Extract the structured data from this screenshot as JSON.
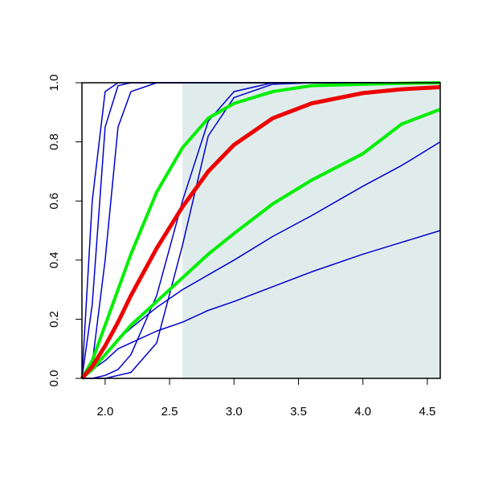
{
  "chart_data": {
    "type": "line",
    "x": [
      1.82,
      1.9,
      2.0,
      2.1,
      2.2,
      2.4,
      2.6,
      2.8,
      3.0,
      3.3,
      3.6,
      4.0,
      4.3,
      4.6
    ],
    "xlim": [
      1.82,
      4.6
    ],
    "ylim": [
      0,
      1
    ],
    "xticks": [
      {
        "value": 2.0,
        "label": "2.0"
      },
      {
        "value": 2.5,
        "label": "2.5"
      },
      {
        "value": 3.0,
        "label": "3.0"
      },
      {
        "value": 3.5,
        "label": "3.5"
      },
      {
        "value": 4.0,
        "label": "4.0"
      },
      {
        "value": 4.5,
        "label": "4.5"
      }
    ],
    "yticks": [
      {
        "value": 0,
        "label": "0.0"
      },
      {
        "value": 0.2,
        "label": "0.2"
      },
      {
        "value": 0.4,
        "label": "0.4"
      },
      {
        "value": 0.6,
        "label": "0.6"
      },
      {
        "value": 0.8,
        "label": "0.8"
      },
      {
        "value": 1,
        "label": "1.0"
      }
    ],
    "shaded_x": [
      2.6,
      4.6
    ],
    "shade_color": "#e0ecec",
    "series": [
      {
        "color": "#0000cc",
        "width": 1.5,
        "values": [
          0,
          0.6,
          0.97,
          1,
          1,
          1,
          1,
          1,
          1,
          1,
          1,
          1,
          1,
          1
        ]
      },
      {
        "color": "#0000cc",
        "width": 1.5,
        "values": [
          0,
          0.25,
          0.85,
          0.99,
          1,
          1,
          1,
          1,
          1,
          1,
          1,
          1,
          1,
          1
        ]
      },
      {
        "color": "#0000cc",
        "width": 1.5,
        "values": [
          0,
          0.05,
          0.4,
          0.85,
          0.97,
          1,
          1,
          1,
          1,
          1,
          1,
          1,
          1,
          1
        ]
      },
      {
        "color": "#0000cc",
        "width": 1.5,
        "values": [
          0,
          0,
          0.01,
          0.03,
          0.08,
          0.28,
          0.6,
          0.87,
          0.97,
          1,
          1,
          1,
          1,
          1
        ]
      },
      {
        "color": "#0000cc",
        "width": 1.5,
        "values": [
          0,
          0,
          0,
          0.01,
          0.02,
          0.12,
          0.45,
          0.82,
          0.95,
          0.995,
          1,
          1,
          1,
          1
        ]
      },
      {
        "color": "#0000cc",
        "width": 1.5,
        "values": [
          0,
          0.03,
          0.06,
          0.1,
          0.12,
          0.16,
          0.19,
          0.23,
          0.26,
          0.31,
          0.36,
          0.42,
          0.46,
          0.5
        ]
      },
      {
        "color": "#0000cc",
        "width": 1.5,
        "values": [
          0,
          0.03,
          0.08,
          0.13,
          0.17,
          0.24,
          0.3,
          0.35,
          0.4,
          0.48,
          0.55,
          0.65,
          0.72,
          0.8
        ]
      },
      {
        "color": "#00ee00",
        "width": 4,
        "values": [
          0,
          0.06,
          0.18,
          0.3,
          0.42,
          0.63,
          0.78,
          0.88,
          0.93,
          0.97,
          0.99,
          0.995,
          0.998,
          1
        ]
      },
      {
        "color": "#00ee00",
        "width": 4,
        "values": [
          0,
          0.03,
          0.08,
          0.13,
          0.18,
          0.26,
          0.34,
          0.42,
          0.49,
          0.59,
          0.67,
          0.76,
          0.86,
          0.91
        ]
      },
      {
        "color": "#ee0000",
        "width": 5,
        "values": [
          0,
          0.04,
          0.11,
          0.19,
          0.28,
          0.44,
          0.58,
          0.7,
          0.79,
          0.88,
          0.93,
          0.965,
          0.978,
          0.985
        ]
      }
    ]
  }
}
